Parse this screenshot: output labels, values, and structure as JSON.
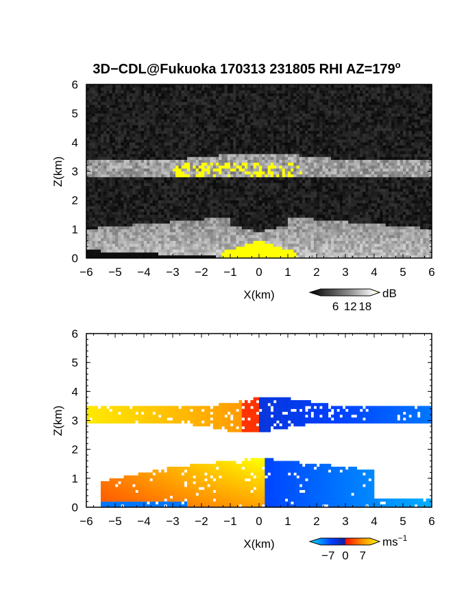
{
  "figure": {
    "title": "3D−CDL@Fukuoka 170313 231805 RHI AZ=179",
    "title_superscript": "o"
  },
  "chart_data": [
    {
      "type": "heatmap",
      "panel": "reflectivity",
      "xlabel": "X(km)",
      "ylabel": "Z(km)",
      "xlim": [
        -6,
        6
      ],
      "ylim": [
        0,
        6
      ],
      "xticks": [
        "−6",
        "−5",
        "−4",
        "−3",
        "−2",
        "−1",
        "0",
        "1",
        "2",
        "3",
        "4",
        "5",
        "6"
      ],
      "yticks": [
        "0",
        "1",
        "2",
        "3",
        "4",
        "5",
        "6"
      ],
      "colorbar": {
        "unit": "dB",
        "ticks": [
          "6",
          "12",
          "18"
        ],
        "range": [
          0,
          20
        ],
        "colors": [
          "#000000",
          "#ffffff",
          "#ffff00"
        ]
      },
      "features": [
        {
          "name": "noise background",
          "z_range": [
            0,
            6
          ],
          "value_db": 2
        },
        {
          "name": "cloud layer",
          "x_range": [
            -6,
            6
          ],
          "z_range": [
            2.8,
            3.4
          ],
          "value_db": 11
        },
        {
          "name": "cloud layer strong echoes",
          "x_range": [
            -3,
            1.5
          ],
          "z_range": [
            2.8,
            3.5
          ],
          "value_db": 18
        },
        {
          "name": "lower layer",
          "x_range": [
            -6,
            6
          ],
          "z_range": [
            0,
            1.5
          ],
          "value_db": 9
        },
        {
          "name": "near-ground strong echo",
          "x_range": [
            -1.3,
            1.3
          ],
          "z_range": [
            0,
            0.6
          ],
          "value_db": 19
        }
      ]
    },
    {
      "type": "heatmap",
      "panel": "doppler velocity",
      "xlabel": "X(km)",
      "ylabel": "Z(km)",
      "xlim": [
        -6,
        6
      ],
      "ylim": [
        0,
        6
      ],
      "xticks": [
        "−6",
        "−5",
        "−4",
        "−3",
        "−2",
        "−1",
        "0",
        "1",
        "2",
        "3",
        "4",
        "5",
        "6"
      ],
      "yticks": [
        "0",
        "1",
        "2",
        "3",
        "4",
        "5",
        "6"
      ],
      "colorbar": {
        "unit": "ms",
        "unit_exponent": "−1",
        "ticks": [
          "−7",
          "0",
          "7"
        ],
        "range": [
          -10,
          10
        ],
        "colors": [
          "#00e5ff",
          "#0040ff",
          "#ff0000",
          "#ffff00"
        ]
      },
      "features": [
        {
          "name": "upper layer",
          "x_range": [
            -6,
            6
          ],
          "z_range": [
            2.5,
            3.8
          ],
          "velocity_left": 7,
          "velocity_right": -6
        },
        {
          "name": "lower layer",
          "x_range": [
            -5.5,
            6
          ],
          "z_range": [
            0,
            1.7
          ],
          "velocity_left": 9,
          "velocity_right": -8
        }
      ]
    }
  ]
}
